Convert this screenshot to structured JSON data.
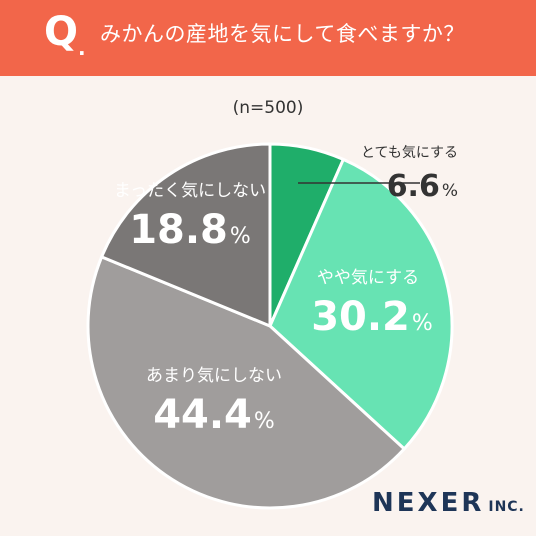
{
  "header": {
    "q_mark": "Q",
    "q_dot": ".",
    "question": "みかんの産地を気にして食べますか？",
    "background_color": "#f2664a"
  },
  "sample_size": "(n=500)",
  "chart_data": {
    "type": "pie",
    "title": "みかんの産地を気にして食べますか？",
    "subtitle": "(n=500)",
    "slices": [
      {
        "label": "とても気にする",
        "value": 6.6,
        "display": "6.6",
        "unit": "%",
        "color": "#1fae6a"
      },
      {
        "label": "やや気にする",
        "value": 30.2,
        "display": "30.2",
        "unit": "%",
        "color": "#67e3b3"
      },
      {
        "label": "あまり気にしない",
        "value": 44.4,
        "display": "44.4",
        "unit": "%",
        "color": "#a09d9c"
      },
      {
        "label": "まったく気にしない",
        "value": 18.8,
        "display": "18.8",
        "unit": "%",
        "color": "#7a7776"
      }
    ]
  },
  "brand": {
    "name": "NEXER",
    "suffix": "INC."
  }
}
